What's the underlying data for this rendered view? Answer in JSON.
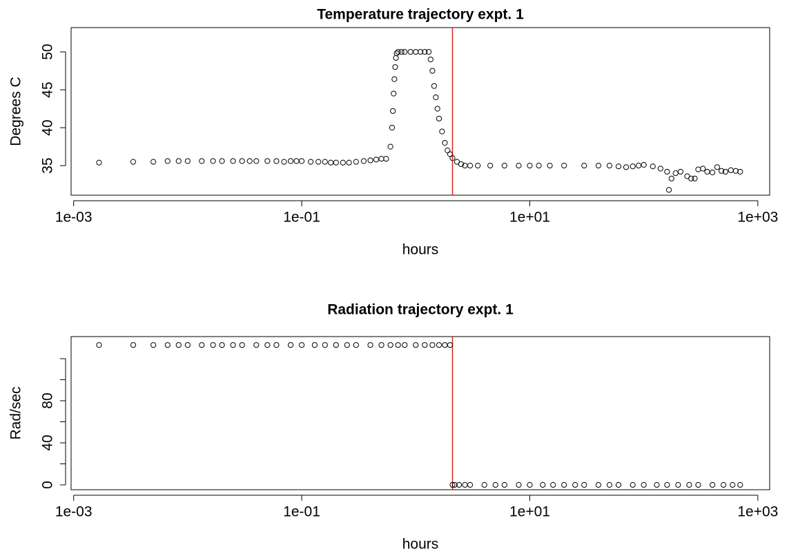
{
  "chart_data": [
    {
      "type": "scatter",
      "title": "Temperature trajectory expt. 1",
      "xlabel": "hours",
      "ylabel": "Degrees C",
      "log_x": true,
      "marker_color": "#000000",
      "vline": {
        "x": 2.1,
        "color": "#e0201b"
      },
      "xlim": [
        0.00095,
        1270
      ],
      "ylim": [
        31.1,
        53.2
      ],
      "xticks": [
        {
          "value": 0.001,
          "label": "1e-03"
        },
        {
          "value": 0.1,
          "label": "1e-01"
        },
        {
          "value": 10,
          "label": "1e+01"
        },
        {
          "value": 1000,
          "label": "1e+03"
        }
      ],
      "yticks": [
        35,
        40,
        45,
        50
      ],
      "x": [
        0.00167,
        0.00333,
        0.005,
        0.00667,
        0.00833,
        0.01,
        0.0133,
        0.0167,
        0.02,
        0.025,
        0.03,
        0.035,
        0.04,
        0.05,
        0.06,
        0.07,
        0.08,
        0.09,
        0.1,
        0.12,
        0.14,
        0.16,
        0.18,
        0.2,
        0.23,
        0.26,
        0.3,
        0.35,
        0.4,
        0.45,
        0.5,
        0.55,
        0.6,
        0.62,
        0.63,
        0.64,
        0.65,
        0.66,
        0.67,
        0.68,
        0.7,
        0.75,
        0.8,
        0.9,
        1.0,
        1.1,
        1.2,
        1.3,
        1.35,
        1.4,
        1.45,
        1.5,
        1.55,
        1.6,
        1.7,
        1.8,
        1.9,
        2.0,
        2.1,
        2.3,
        2.5,
        2.7,
        3,
        3.5,
        4.5,
        6,
        8,
        10,
        12,
        15,
        20,
        30,
        40,
        50,
        60,
        70,
        80,
        90,
        100,
        120,
        140,
        160,
        166,
        175,
        190,
        210,
        240,
        260,
        280,
        300,
        330,
        360,
        400,
        440,
        480,
        520,
        580,
        640,
        700
      ],
      "values": [
        35.4,
        35.5,
        35.5,
        35.6,
        35.6,
        35.6,
        35.6,
        35.6,
        35.6,
        35.6,
        35.6,
        35.6,
        35.6,
        35.6,
        35.6,
        35.5,
        35.6,
        35.6,
        35.6,
        35.5,
        35.5,
        35.5,
        35.4,
        35.4,
        35.4,
        35.4,
        35.5,
        35.6,
        35.7,
        35.8,
        35.9,
        35.9,
        37.5,
        40,
        42.2,
        44.5,
        46.4,
        48,
        49.2,
        49.8,
        50,
        50,
        50,
        50,
        50,
        50,
        50,
        50,
        49,
        47.5,
        45.5,
        44,
        42.5,
        41.2,
        39.5,
        38,
        37,
        36.5,
        36,
        35.5,
        35.2,
        35,
        35,
        35,
        35,
        35,
        35,
        35,
        35,
        35,
        35,
        35,
        35,
        35,
        34.9,
        34.8,
        34.9,
        35,
        35.1,
        34.9,
        34.6,
        34.2,
        31.8,
        33.3,
        34,
        34.2,
        33.6,
        33.3,
        33.3,
        34.5,
        34.6,
        34.2,
        34.1,
        34.8,
        34.3,
        34.2,
        34.4,
        34.3,
        34.2
      ]
    },
    {
      "type": "scatter",
      "title": "Radiation trajectory expt. 1",
      "xlabel": "hours",
      "ylabel": "Rad/sec",
      "log_x": true,
      "marker_color": "#000000",
      "vline": {
        "x": 2.1,
        "color": "#e0201b"
      },
      "xlim": [
        0.00095,
        1270
      ],
      "ylim": [
        -4.6,
        141
      ],
      "xticks": [
        {
          "value": 0.001,
          "label": "1e-03"
        },
        {
          "value": 0.1,
          "label": "1e-01"
        },
        {
          "value": 10,
          "label": "1e+01"
        },
        {
          "value": 1000,
          "label": "1e+03"
        }
      ],
      "yticks": [
        0,
        40,
        80
      ],
      "yminor_ticks": [
        20,
        60,
        100,
        120
      ],
      "x": [
        0.00167,
        0.00333,
        0.005,
        0.00667,
        0.00833,
        0.01,
        0.0133,
        0.0167,
        0.02,
        0.025,
        0.03,
        0.04,
        0.05,
        0.06,
        0.08,
        0.1,
        0.13,
        0.16,
        0.2,
        0.25,
        0.3,
        0.4,
        0.5,
        0.6,
        0.7,
        0.8,
        1,
        1.2,
        1.4,
        1.6,
        1.8,
        2.0,
        2.1,
        2.2,
        2.4,
        2.7,
        3,
        4,
        5,
        6,
        8,
        10,
        13,
        16,
        20,
        25,
        30,
        40,
        50,
        60,
        80,
        100,
        130,
        160,
        200,
        250,
        300,
        400,
        500,
        600,
        700
      ],
      "values": [
        133,
        133,
        133,
        133,
        133,
        133,
        133,
        133,
        133,
        133,
        133,
        133,
        133,
        133,
        133,
        133,
        133,
        133,
        133,
        133,
        133,
        133,
        133,
        133,
        133,
        133,
        133,
        133,
        133,
        133,
        133,
        133,
        0,
        0,
        0,
        0,
        0,
        0,
        0,
        0,
        0,
        0,
        0,
        0,
        0,
        0,
        0,
        0,
        0,
        0,
        0,
        0,
        0,
        0,
        0,
        0,
        0,
        0,
        0,
        0,
        0
      ]
    }
  ]
}
